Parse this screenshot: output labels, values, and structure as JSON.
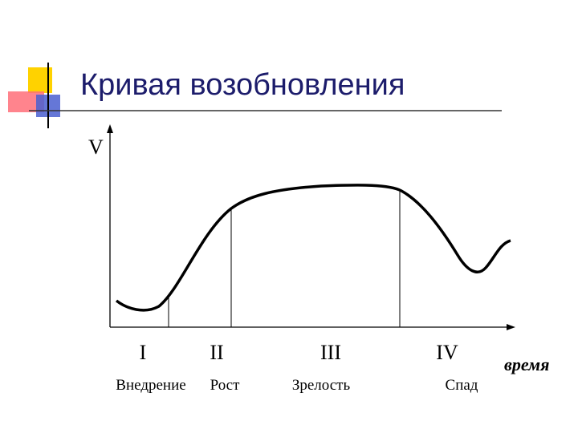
{
  "title": "Кривая возобновления",
  "y_axis_label": "V",
  "x_axis_label": "время",
  "stages": [
    {
      "numeral": "I",
      "label": "Внедрение"
    },
    {
      "numeral": "II",
      "label": "Рост"
    },
    {
      "numeral": "III",
      "label": "Зрелость"
    },
    {
      "numeral": "IV",
      "label": "Спад"
    }
  ]
}
